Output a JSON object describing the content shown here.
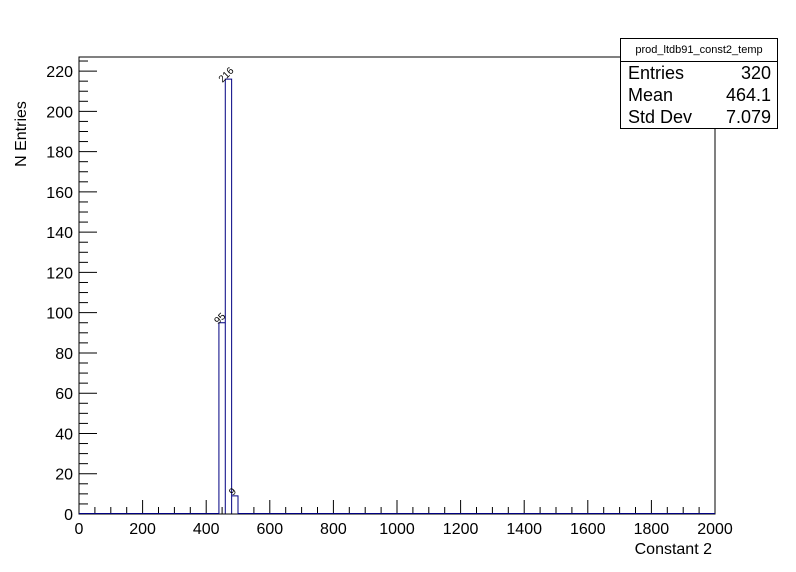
{
  "chart_data": {
    "type": "bar",
    "histogram": true,
    "xlabel": "Constant 2",
    "ylabel": "N Entries",
    "xlim": [
      0,
      2000
    ],
    "ylim": [
      0,
      227
    ],
    "x_ticks": [
      0,
      200,
      400,
      600,
      800,
      1000,
      1200,
      1400,
      1600,
      1800,
      2000
    ],
    "y_ticks": [
      0,
      20,
      40,
      60,
      80,
      100,
      120,
      140,
      160,
      180,
      200,
      220
    ],
    "bin_width": 20,
    "bins": [
      {
        "x0": 440,
        "x1": 460,
        "value": 95,
        "label": "95"
      },
      {
        "x0": 460,
        "x1": 480,
        "value": 216,
        "label": "216"
      },
      {
        "x0": 480,
        "x1": 500,
        "value": 9,
        "label": "9"
      }
    ],
    "line_color": "#000080",
    "grid": false
  },
  "stats": {
    "title": "prod_ltdb91_const2_temp",
    "rows": [
      {
        "label": "Entries",
        "value": "320"
      },
      {
        "label": "Mean",
        "value": "464.1"
      },
      {
        "label": "Std Dev",
        "value": "7.079"
      }
    ]
  }
}
